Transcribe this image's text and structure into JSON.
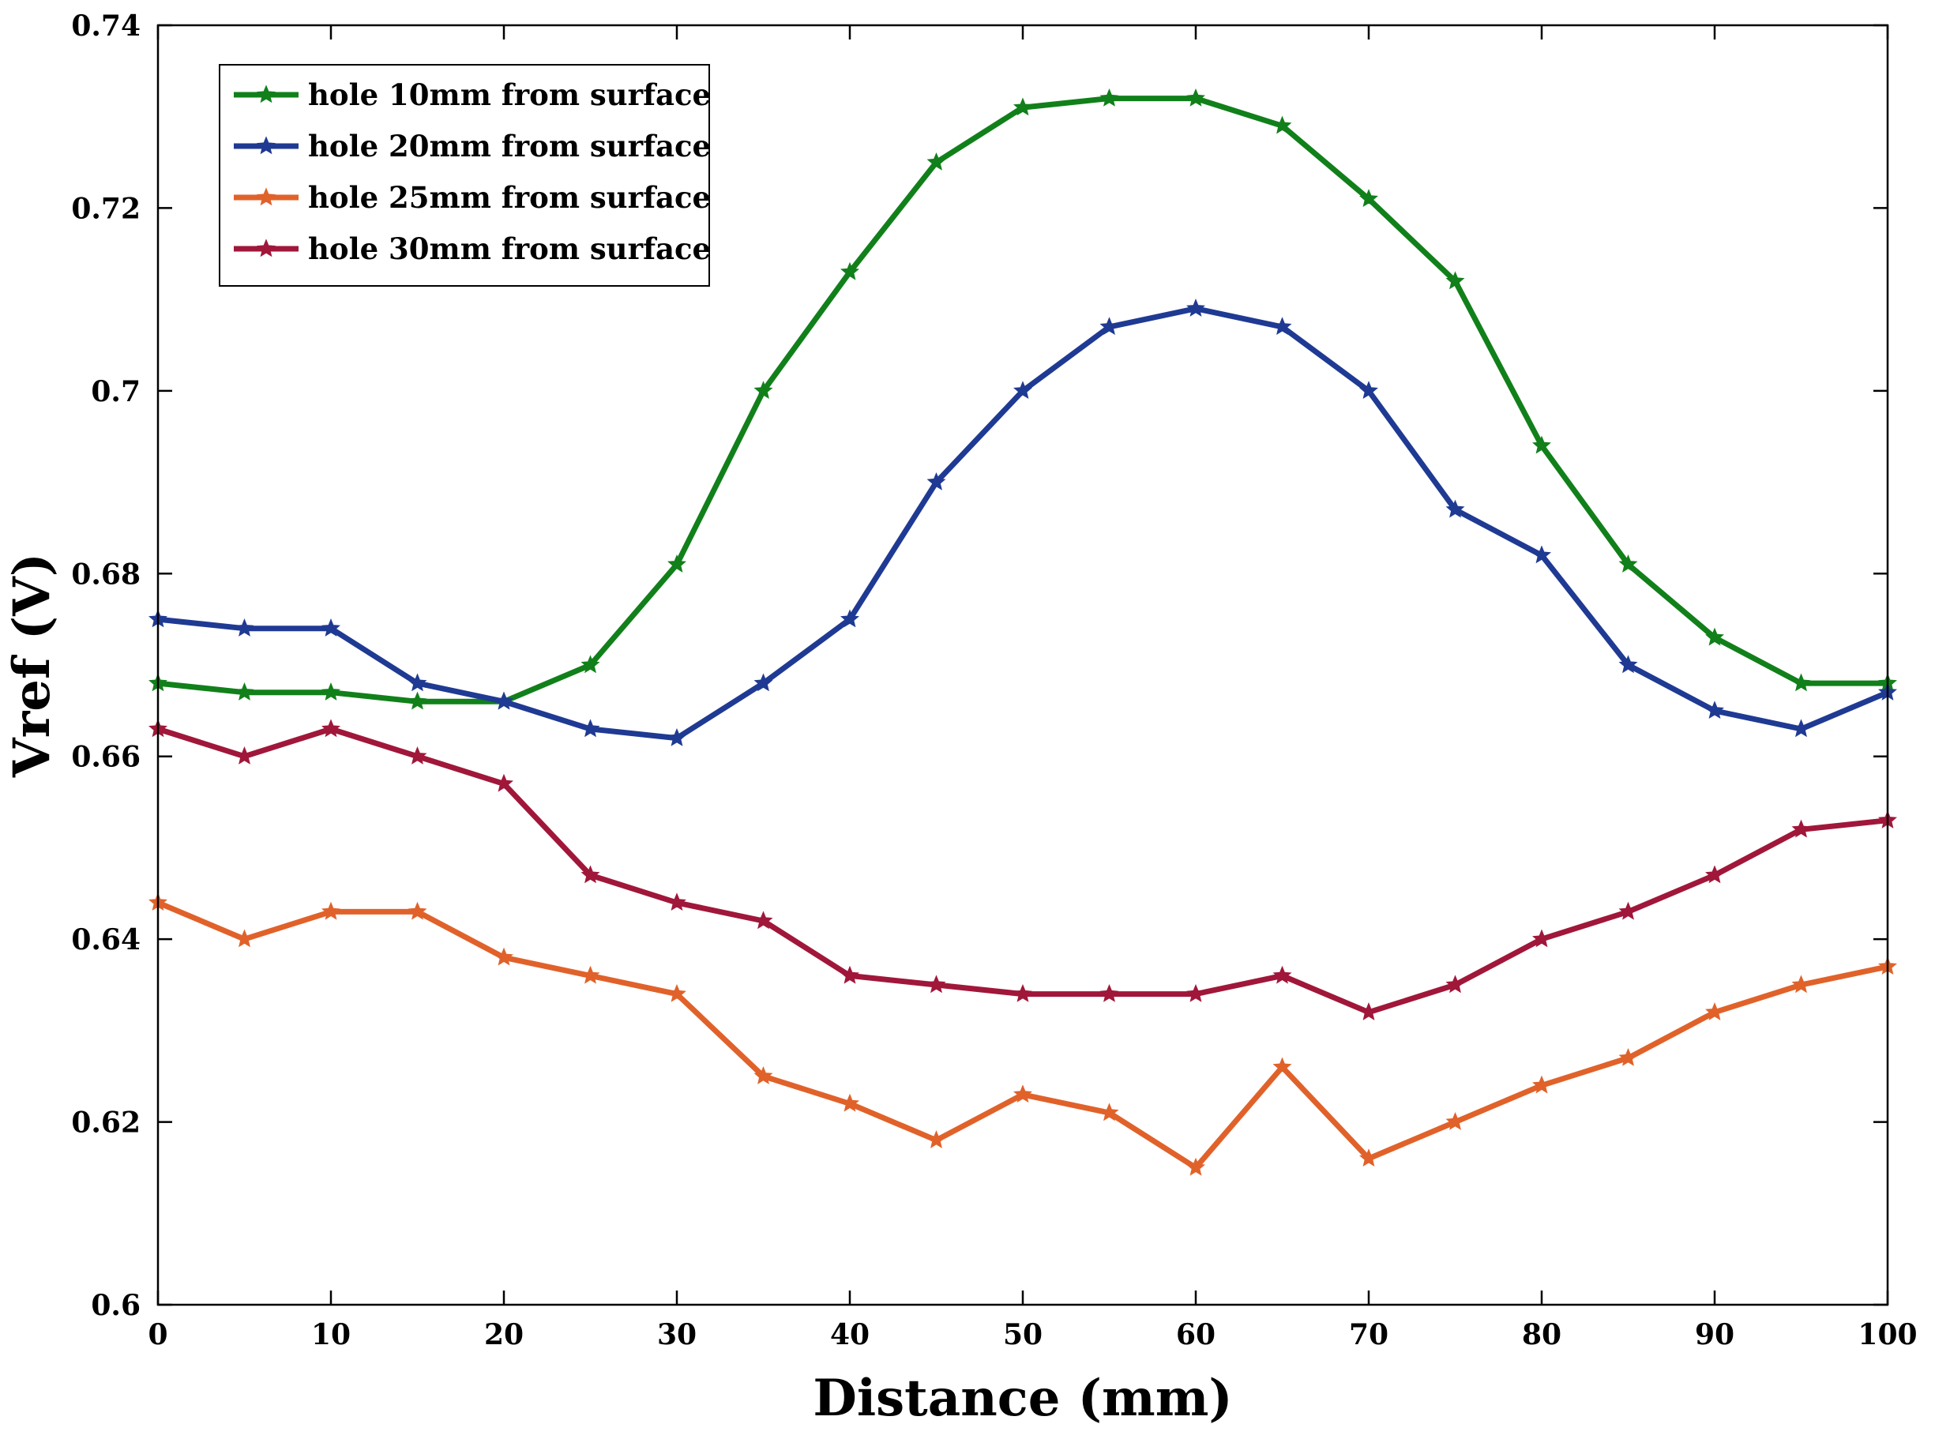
{
  "chart_data": {
    "type": "line",
    "title": "",
    "xlabel": "Distance (mm)",
    "ylabel": "Vref (V)",
    "xlim": [
      0,
      100
    ],
    "ylim": [
      0.6,
      0.74
    ],
    "xticks": [
      0,
      10,
      20,
      30,
      40,
      50,
      60,
      70,
      80,
      90,
      100
    ],
    "yticks": [
      0.6,
      0.62,
      0.64,
      0.66,
      0.68,
      0.7,
      0.72,
      0.74
    ],
    "ytick_labels": [
      "0.6",
      "0.62",
      "0.64",
      "0.66",
      "0.68",
      "0.7",
      "0.72",
      "0.74"
    ],
    "grid": false,
    "legend_position": "top-left",
    "x": [
      0,
      5,
      10,
      15,
      20,
      25,
      30,
      35,
      40,
      45,
      50,
      55,
      60,
      65,
      70,
      75,
      80,
      85,
      90,
      95,
      100
    ],
    "series": [
      {
        "name": "hole 10mm from surface",
        "color": "#11801a",
        "values": [
          0.668,
          0.667,
          0.667,
          0.666,
          0.666,
          0.67,
          0.681,
          0.7,
          0.713,
          0.725,
          0.731,
          0.732,
          0.732,
          0.729,
          0.721,
          0.712,
          0.694,
          0.681,
          0.673,
          0.668,
          0.668
        ]
      },
      {
        "name": "hole 20mm from surface",
        "color": "#1f3a93",
        "values": [
          0.675,
          0.674,
          0.674,
          0.668,
          0.666,
          0.663,
          0.662,
          0.668,
          0.675,
          0.69,
          0.7,
          0.707,
          0.709,
          0.707,
          0.7,
          0.687,
          0.682,
          0.67,
          0.665,
          0.663,
          0.667
        ]
      },
      {
        "name": "hole 25mm from surface",
        "color": "#e0622a",
        "values": [
          0.644,
          0.64,
          0.643,
          0.643,
          0.638,
          0.636,
          0.634,
          0.625,
          0.622,
          0.618,
          0.623,
          0.621,
          0.615,
          0.626,
          0.616,
          0.62,
          0.624,
          0.627,
          0.632,
          0.635,
          0.637
        ]
      },
      {
        "name": "hole 30mm from surface",
        "color": "#a0173a",
        "values": [
          0.663,
          0.66,
          0.663,
          0.66,
          0.657,
          0.647,
          0.644,
          0.642,
          0.636,
          0.635,
          0.634,
          0.634,
          0.634,
          0.636,
          0.632,
          0.635,
          0.64,
          0.643,
          0.647,
          0.652,
          0.653
        ]
      }
    ]
  }
}
